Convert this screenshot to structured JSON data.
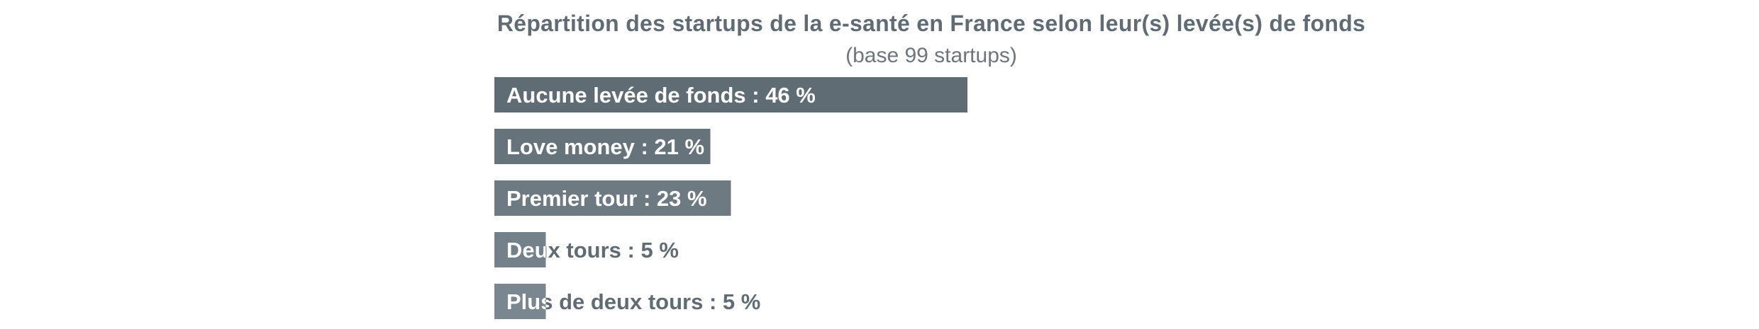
{
  "chart_data": {
    "type": "bar",
    "orientation": "horizontal",
    "title": "Répartition des startups de la e-santé en France selon leur(s) levée(s) de fonds",
    "subtitle": "(base 99 startups)",
    "categories": [
      "Aucune levée de fonds",
      "Love money",
      "Premier tour",
      "Deux tours",
      "Plus de deux tours"
    ],
    "values": [
      46,
      21,
      23,
      5,
      5
    ],
    "labels": [
      "Aucune levée de fonds : 46 %",
      "Love money : 21 %",
      "Premier tour : 23 %",
      "Deux tours : 5 %",
      "Plus de deux tours : 5 %"
    ],
    "unit": "%",
    "xlim": [
      0,
      100
    ],
    "grid": false,
    "legend": "none",
    "colors": {
      "bars": [
        "#5f6c74",
        "#66737b",
        "#6d7a82",
        "#74818a",
        "#7a8790"
      ],
      "label_on_bar": "#ffffff",
      "label_off_bar": "#5f6c74",
      "title": "#5f6c74",
      "subtitle": "#6b767d"
    }
  }
}
